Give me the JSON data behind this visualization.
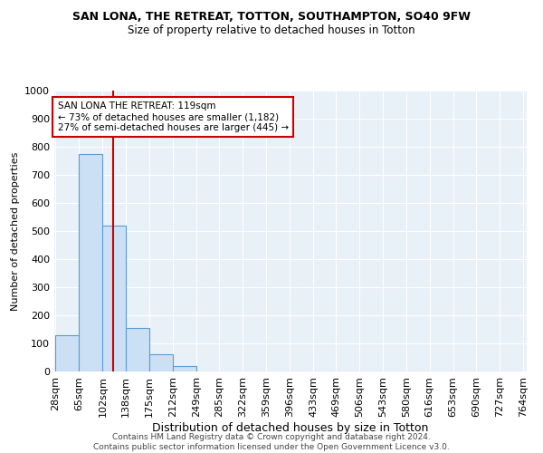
{
  "title": "SAN LONA, THE RETREAT, TOTTON, SOUTHAMPTON, SO40 9FW",
  "subtitle": "Size of property relative to detached houses in Totton",
  "xlabel": "Distribution of detached houses by size in Totton",
  "ylabel": "Number of detached properties",
  "footer_line1": "Contains HM Land Registry data © Crown copyright and database right 2024.",
  "footer_line2": "Contains public sector information licensed under the Open Government Licence v3.0.",
  "annotation_line1": "SAN LONA THE RETREAT: 119sqm",
  "annotation_line2": "← 73% of detached houses are smaller (1,182)",
  "annotation_line3": "27% of semi-detached houses are larger (445) →",
  "property_size": 119,
  "bar_edges": [
    28,
    65,
    102,
    138,
    175,
    212,
    249,
    285,
    322,
    359,
    396,
    433,
    469,
    506,
    543,
    580,
    616,
    653,
    690,
    727,
    764
  ],
  "bar_heights": [
    130,
    775,
    520,
    155,
    60,
    20,
    0,
    0,
    0,
    0,
    0,
    0,
    0,
    0,
    0,
    0,
    0,
    0,
    0,
    0
  ],
  "bar_color": "#cce0f5",
  "bar_edge_color": "#5b9bd5",
  "red_line_color": "#cc0000",
  "annotation_box_color": "#cc0000",
  "background_color": "#e8f0f8",
  "ylim": [
    0,
    1000
  ],
  "yticks": [
    0,
    100,
    200,
    300,
    400,
    500,
    600,
    700,
    800,
    900,
    1000
  ]
}
